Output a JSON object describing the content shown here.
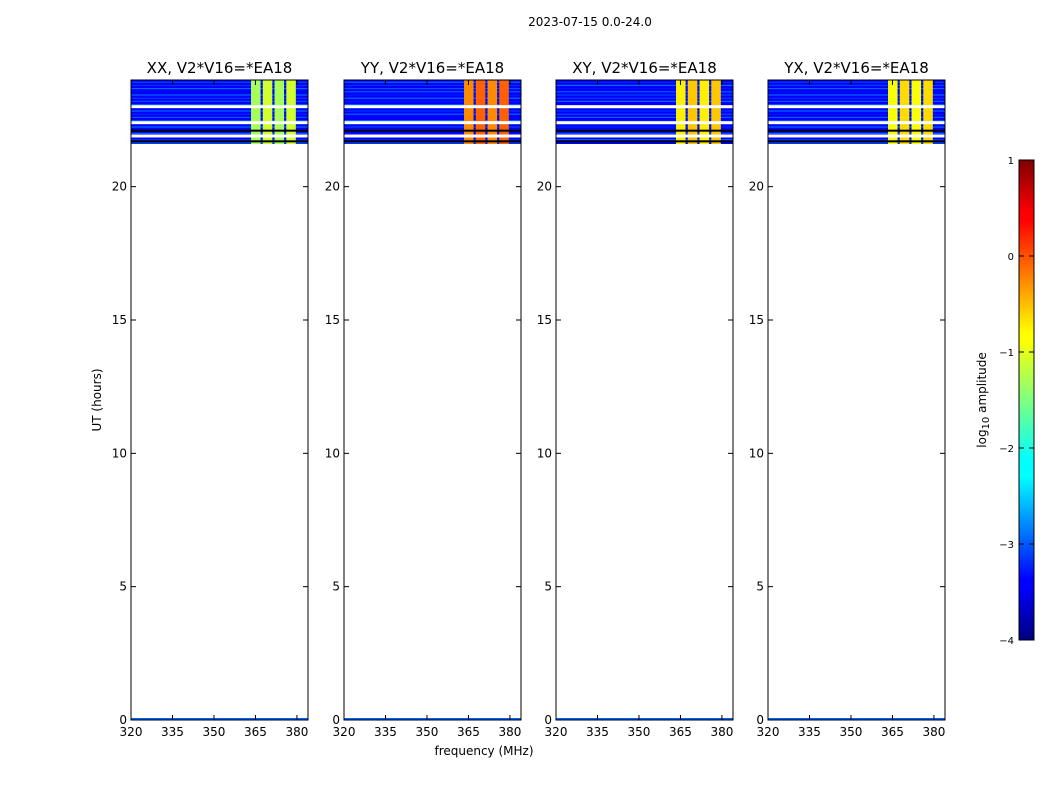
{
  "figure": {
    "suptitle": "2023-07-15 0.0-24.0"
  },
  "chart_data": {
    "type": "heatmap",
    "title": "2023-07-15 0.0-24.0",
    "xlabel": "frequency (MHz)",
    "ylabel": "UT (hours)",
    "xlim": [
      320,
      384
    ],
    "ylim": [
      0,
      24
    ],
    "xticks": [
      "320",
      "335",
      "350",
      "365",
      "380"
    ],
    "yticks": [
      "0",
      "5",
      "10",
      "15",
      "20"
    ],
    "panels": [
      {
        "title": "XX, V2*V16=*EA18",
        "block_value": -1.3
      },
      {
        "title": "YY, V2*V16=*EA18",
        "block_value": -0.3
      },
      {
        "title": "XY, V2*V16=*EA18",
        "block_value": -0.8
      },
      {
        "title": "YX, V2*V16=*EA18",
        "block_value": -0.9
      }
    ],
    "data_extent_ut": [
      21.6,
      24.0
    ],
    "background_value": -3.4,
    "highlight_band_mhz": [
      363,
      380
    ],
    "gap_rows_ut": [
      23.0,
      22.4,
      21.9
    ],
    "colorbar": {
      "label": "log10 amplitude",
      "label_main": "log",
      "label_sub": "10",
      "label_rest": " amplitude",
      "range": [
        -4,
        1
      ],
      "ticks": [
        "1",
        "0",
        "−1",
        "−2",
        "−3",
        "−4"
      ],
      "colormap": "jet"
    }
  }
}
